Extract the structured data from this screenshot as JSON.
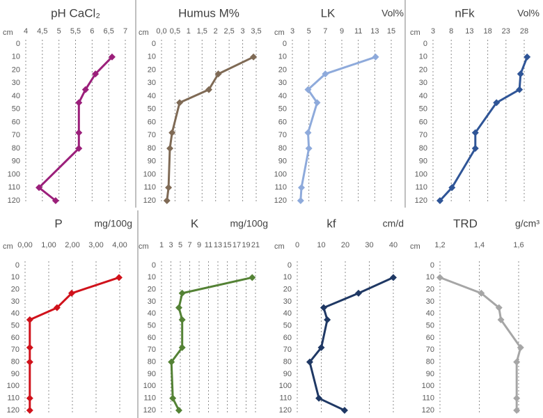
{
  "chart_data": [
    {
      "type": "line",
      "title": "pH CaCl₂",
      "y_label": "cm",
      "xlim": [
        4,
        7
      ],
      "xticks": [
        4,
        {
          "value": 4.5,
          "label": "4,5"
        },
        5,
        {
          "value": 5.5,
          "label": "5,5"
        },
        6,
        {
          "value": 6.5,
          "label": "6,5"
        },
        7
      ],
      "ylim": [
        0,
        120
      ],
      "yticks": [
        0,
        10,
        20,
        30,
        40,
        50,
        60,
        70,
        80,
        90,
        100,
        110,
        120
      ],
      "y_inverted": true,
      "grid": true,
      "y": [
        10,
        23,
        35,
        45,
        68,
        80,
        110,
        120
      ],
      "series": [
        {
          "color": "#9b1f7a",
          "values": [
            6.6,
            6.1,
            5.8,
            5.6,
            5.6,
            5.6,
            4.4,
            4.9
          ]
        }
      ]
    },
    {
      "type": "line",
      "title": "Humus M%",
      "y_label": "cm",
      "xlim": [
        0,
        3.5
      ],
      "xticks": [
        {
          "value": 0,
          "label": "0,0"
        },
        {
          "value": 0.5,
          "label": "0,5"
        },
        1,
        {
          "value": 1.5,
          "label": "1,5"
        },
        2,
        {
          "value": 2.5,
          "label": "2,5"
        },
        3,
        {
          "value": 3.5,
          "label": "3,5"
        }
      ],
      "ylim": [
        0,
        120
      ],
      "yticks": [
        0,
        10,
        20,
        30,
        40,
        50,
        60,
        70,
        80,
        90,
        100,
        110,
        120
      ],
      "y_inverted": true,
      "grid": true,
      "y": [
        10,
        23,
        35,
        45,
        68,
        80,
        110,
        120
      ],
      "series": [
        {
          "color": "#7f6a55",
          "values": [
            3.4,
            2.1,
            1.75,
            0.67,
            0.39,
            0.31,
            0.26,
            0.2
          ]
        }
      ]
    },
    {
      "type": "line",
      "title": "LK",
      "unit": "Vol%",
      "y_label": "cm",
      "xlim": [
        3,
        15
      ],
      "xticks": [
        3,
        5,
        7,
        9,
        11,
        13,
        15
      ],
      "ylim": [
        0,
        120
      ],
      "yticks": [
        0,
        10,
        20,
        30,
        40,
        50,
        60,
        70,
        80,
        90,
        100,
        110,
        120
      ],
      "y_inverted": true,
      "grid": true,
      "y": [
        10,
        23,
        35,
        45,
        68,
        80,
        110,
        120
      ],
      "series": [
        {
          "color": "#8eaadb",
          "values": [
            13.1,
            7,
            4.9,
            6,
            4.9,
            5,
            4.1,
            4
          ]
        }
      ]
    },
    {
      "type": "line",
      "title": "nFk",
      "unit": "Vol%",
      "y_label": "cm",
      "xlim": [
        3,
        28
      ],
      "xticks": [
        3,
        8,
        13,
        18,
        23,
        28
      ],
      "ylim": [
        0,
        120
      ],
      "yticks": [
        0,
        10,
        20,
        30,
        40,
        50,
        60,
        70,
        80,
        90,
        100,
        110,
        120
      ],
      "y_inverted": true,
      "grid": true,
      "y": [
        10,
        23,
        35,
        45,
        68,
        80,
        110,
        120
      ],
      "series": [
        {
          "color": "#2f5597",
          "values": [
            28.8,
            27,
            26.7,
            20.4,
            14.6,
            14.6,
            8.2,
            4.9
          ]
        }
      ]
    },
    {
      "type": "line",
      "title": "P",
      "unit": "mg/100g",
      "y_label": "cm",
      "xlim": [
        0,
        4
      ],
      "xticks": [
        {
          "value": 0,
          "label": "0,00"
        },
        {
          "value": 1,
          "label": "1,00"
        },
        {
          "value": 2,
          "label": "2,00"
        },
        {
          "value": 3,
          "label": "3,00"
        },
        {
          "value": 4,
          "label": "4,00"
        }
      ],
      "ylim": [
        0,
        120
      ],
      "yticks": [
        0,
        10,
        20,
        30,
        40,
        50,
        60,
        70,
        80,
        90,
        100,
        110,
        120
      ],
      "y_inverted": true,
      "grid": true,
      "y": [
        10,
        23,
        35,
        45,
        68,
        80,
        110,
        120
      ],
      "series": [
        {
          "color": "#d0121b",
          "values": [
            3.97,
            1.97,
            1.35,
            0.2,
            0.2,
            0.2,
            0.2,
            0.2
          ]
        }
      ]
    },
    {
      "type": "line",
      "title": "K",
      "unit": "mg/100g",
      "y_label": "cm",
      "xlim": [
        1,
        21
      ],
      "xticks": [
        1,
        3,
        5,
        7,
        9,
        11,
        13,
        15,
        17,
        19,
        21
      ],
      "ylim": [
        0,
        120
      ],
      "yticks": [
        0,
        10,
        20,
        30,
        40,
        50,
        60,
        70,
        80,
        90,
        100,
        110,
        120
      ],
      "y_inverted": true,
      "grid": true,
      "y": [
        10,
        23,
        35,
        45,
        68,
        80,
        110,
        120
      ],
      "series": [
        {
          "color": "#548235",
          "values": [
            20.3,
            5.4,
            4.7,
            5.4,
            5.4,
            3.1,
            3.4,
            4.7
          ]
        }
      ]
    },
    {
      "type": "line",
      "title": "kf",
      "unit": "cm/d",
      "y_label": "cm",
      "xlim": [
        0,
        40
      ],
      "xticks": [
        0,
        10,
        20,
        30,
        40
      ],
      "ylim": [
        0,
        120
      ],
      "yticks": [
        0,
        10,
        20,
        30,
        40,
        50,
        60,
        70,
        80,
        90,
        100,
        110,
        120
      ],
      "y_inverted": true,
      "grid": true,
      "y": [
        10,
        23,
        35,
        45,
        68,
        80,
        110,
        120
      ],
      "series": [
        {
          "color": "#1f3864",
          "values": [
            40,
            25.5,
            11,
            12.5,
            10,
            5.2,
            9,
            19.7
          ]
        }
      ]
    },
    {
      "type": "line",
      "title": "TRD",
      "unit": "g/cm³",
      "y_label": "cm",
      "xlim": [
        1.2,
        1.6
      ],
      "xticks": [
        {
          "value": 1.2,
          "label": "1,2"
        },
        {
          "value": 1.4,
          "label": "1,4"
        },
        {
          "value": 1.6,
          "label": "1,6"
        }
      ],
      "ylim": [
        0,
        120
      ],
      "yticks": [
        0,
        10,
        20,
        30,
        40,
        50,
        60,
        70,
        80,
        90,
        100,
        110,
        120
      ],
      "y_inverted": true,
      "grid": true,
      "y": [
        10,
        23,
        35,
        45,
        68,
        80,
        110,
        120
      ],
      "series": [
        {
          "color": "#a6a6a6",
          "values": [
            1.2,
            1.41,
            1.5,
            1.51,
            1.61,
            1.59,
            1.59,
            1.59
          ]
        }
      ]
    }
  ]
}
